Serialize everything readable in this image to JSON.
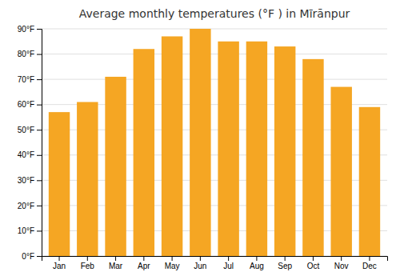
{
  "chart_data": {
    "type": "bar",
    "title": "Average monthly temperatures (°F ) in Mīrānpur",
    "categories": [
      "Jan",
      "Feb",
      "Mar",
      "Apr",
      "May",
      "Jun",
      "Jul",
      "Aug",
      "Sep",
      "Oct",
      "Nov",
      "Dec"
    ],
    "values": [
      57,
      61,
      71,
      82,
      87,
      90,
      85,
      85,
      83,
      78,
      67,
      59
    ],
    "color": "#F5A623",
    "ylim": [
      0,
      90
    ],
    "yticks": [
      {
        "value": 0,
        "label": "0°F"
      },
      {
        "value": 10,
        "label": "10°F"
      },
      {
        "value": 20,
        "label": "20°F"
      },
      {
        "value": 30,
        "label": "30°F"
      },
      {
        "value": 40,
        "label": "40°F"
      },
      {
        "value": 50,
        "label": "50°F"
      },
      {
        "value": 60,
        "label": "60°F"
      },
      {
        "value": 70,
        "label": "70°F"
      },
      {
        "value": 80,
        "label": "80°F"
      },
      {
        "value": 90,
        "label": "90°F"
      }
    ],
    "grid": true
  }
}
